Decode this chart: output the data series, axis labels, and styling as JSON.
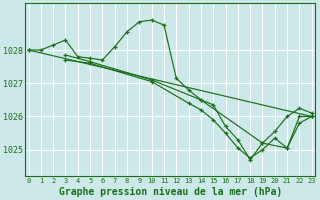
{
  "background_color": "#cce8e8",
  "grid_color": "#ffffff",
  "line_color": "#1a6e1a",
  "xlim": [
    -0.3,
    23.3
  ],
  "ylim": [
    1024.2,
    1029.4
  ],
  "yticks": [
    1025,
    1026,
    1027,
    1028
  ],
  "xticks": [
    0,
    1,
    2,
    3,
    4,
    5,
    6,
    7,
    8,
    9,
    10,
    11,
    12,
    13,
    14,
    15,
    16,
    17,
    18,
    19,
    20,
    21,
    22,
    23
  ],
  "title": "Graphe pression niveau de la mer (hPa)",
  "series": [
    {
      "x": [
        0,
        1,
        2,
        3,
        4,
        5,
        6,
        7,
        8,
        9,
        10,
        11,
        12,
        13,
        14,
        15,
        16,
        17,
        18,
        19,
        20,
        21,
        22,
        23
      ],
      "y": [
        1028.0,
        1028.0,
        1028.15,
        1028.3,
        1027.8,
        1027.75,
        1027.7,
        1028.1,
        1028.55,
        1028.85,
        1028.9,
        1028.75,
        1027.15,
        1026.8,
        1026.5,
        1026.35,
        1025.7,
        1025.3,
        1024.7,
        1025.2,
        1025.55,
        1026.0,
        1026.25,
        1026.1
      ]
    },
    {
      "x": [
        0,
        23
      ],
      "y": [
        1028.0,
        1026.0
      ]
    },
    {
      "x": [
        3,
        5,
        10,
        14,
        19,
        21,
        22,
        23
      ],
      "y": [
        1027.85,
        1027.65,
        1027.1,
        1026.5,
        1025.2,
        1025.05,
        1026.0,
        1026.0
      ]
    },
    {
      "x": [
        3,
        5,
        10,
        13,
        14,
        15,
        16,
        17,
        18,
        19,
        20,
        21,
        22,
        23
      ],
      "y": [
        1027.7,
        1027.6,
        1027.05,
        1026.4,
        1026.2,
        1025.9,
        1025.5,
        1025.05,
        1024.75,
        1025.0,
        1025.35,
        1025.05,
        1025.8,
        1026.0
      ]
    }
  ]
}
